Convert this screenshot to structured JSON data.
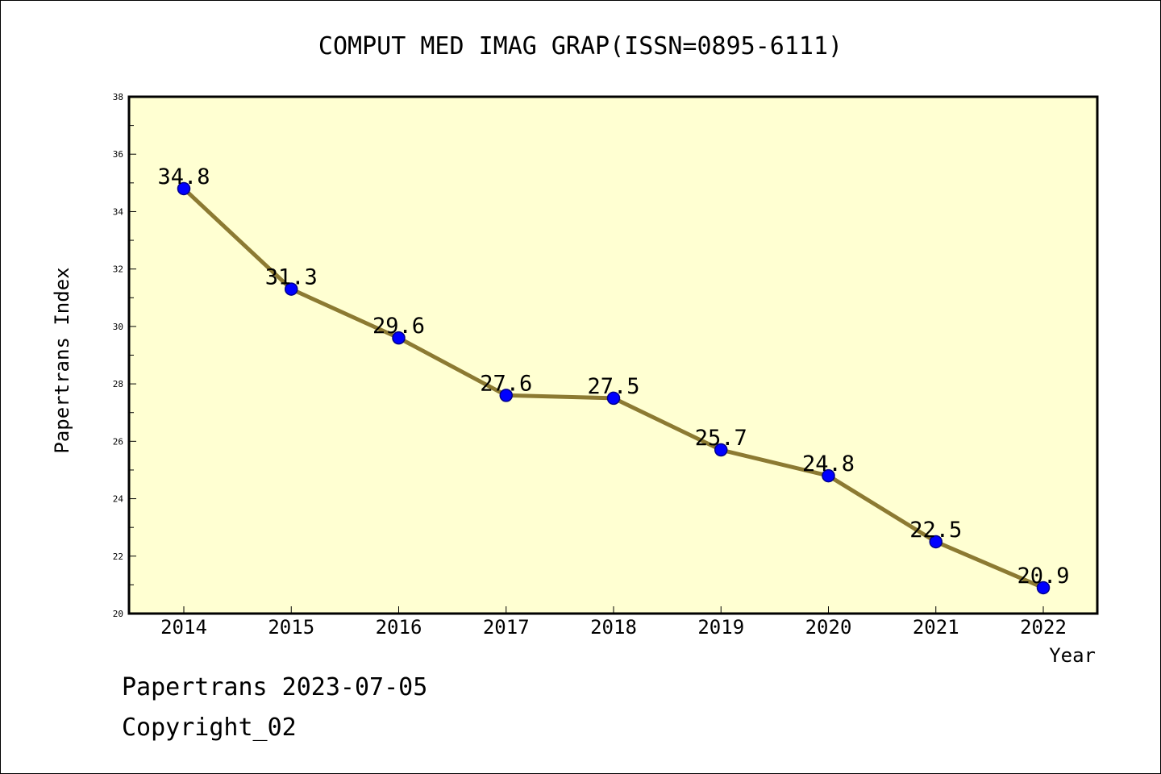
{
  "chart_data": {
    "type": "line",
    "title": "COMPUT MED IMAG GRAP(ISSN=0895-6111)",
    "xlabel": "Year",
    "ylabel": "Papertrans Index",
    "x": [
      "2014",
      "2015",
      "2016",
      "2017",
      "2018",
      "2019",
      "2020",
      "2021",
      "2022"
    ],
    "values": [
      34.8,
      31.3,
      29.6,
      27.6,
      27.5,
      25.7,
      24.8,
      22.5,
      20.9
    ],
    "data_labels": [
      "34.8",
      "31.3",
      "29.6",
      "27.6",
      "27.5",
      "25.7",
      "24.8",
      "22.5",
      "20.9"
    ],
    "ylim": [
      20,
      38
    ],
    "yticks": [
      20,
      22,
      24,
      26,
      28,
      30,
      32,
      34,
      36,
      38
    ],
    "grid": false,
    "legend": "none",
    "colors": {
      "plot_background": "#ffffd2",
      "line": "#8c7a32",
      "marker": "#0000ff",
      "marker_edge": "#00008b",
      "axes": "#000000"
    }
  },
  "footer": {
    "source_date": "Papertrans 2023-07-05",
    "copyright": "Copyright_02"
  }
}
